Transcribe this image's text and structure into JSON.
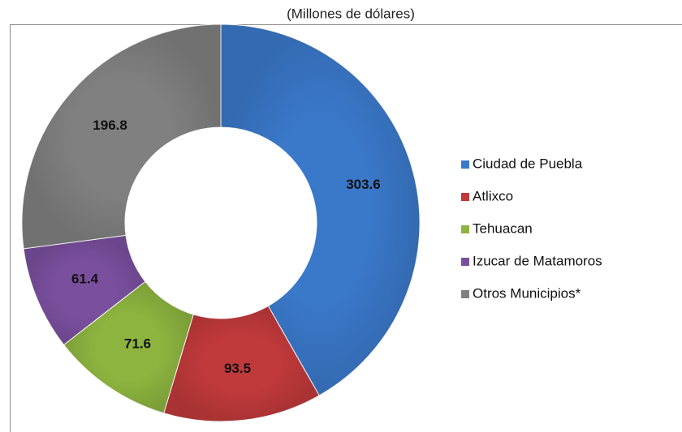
{
  "chart_data": {
    "type": "donut",
    "subtitle": "(Millones de dólares)",
    "categories": [
      "Ciudad de Puebla",
      "Atlixco",
      "Tehuacan",
      "Izucar de Matamoros",
      "Otros Municipios*"
    ],
    "values": [
      303.6,
      93.5,
      71.6,
      61.4,
      196.8
    ],
    "colors": [
      "#3a78c9",
      "#c0393b",
      "#8db43f",
      "#7a4f9e",
      "#808080"
    ],
    "legend": "right"
  }
}
